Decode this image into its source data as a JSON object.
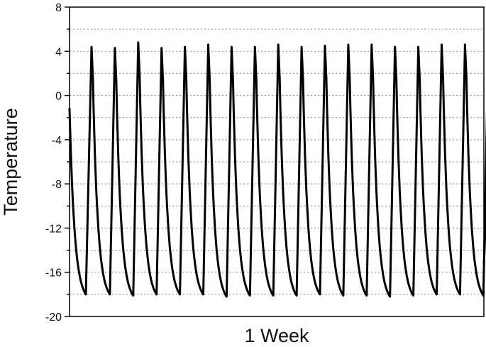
{
  "chart_data": {
    "type": "line",
    "xlabel": "1 Week",
    "ylabel": "Temperature",
    "ylim": [
      -20,
      8
    ],
    "yticks": [
      -20,
      -16,
      -12,
      -8,
      -4,
      0,
      4,
      8
    ],
    "ytick_labels": [
      "-20",
      "-16",
      "-12",
      "-8",
      "-4",
      "0",
      "4",
      "8"
    ],
    "xticks": [],
    "grid": {
      "horizontal": true,
      "vertical": false,
      "style": "dotted",
      "y_values": [
        -18,
        -16,
        -14,
        -12,
        -10,
        -8,
        -6,
        -4,
        -2,
        0,
        2,
        4,
        6
      ]
    },
    "legend": "none",
    "series": [
      {
        "color": "#000000",
        "start_value": -1.2,
        "end_value": -15.2,
        "cycles": [
          {
            "peak": 4.4,
            "trough": -18.0
          },
          {
            "peak": 4.3,
            "trough": -18.1
          },
          {
            "peak": 4.8,
            "trough": -18.0
          },
          {
            "peak": 4.3,
            "trough": -18.0
          },
          {
            "peak": 4.4,
            "trough": -18.0
          },
          {
            "peak": 4.6,
            "trough": -18.2
          },
          {
            "peak": 4.4,
            "trough": -18.1
          },
          {
            "peak": 4.4,
            "trough": -18.1
          },
          {
            "peak": 4.6,
            "trough": -18.1
          },
          {
            "peak": 4.4,
            "trough": -18.0
          },
          {
            "peak": 4.5,
            "trough": -18.1
          },
          {
            "peak": 4.6,
            "trough": -18.1
          },
          {
            "peak": 4.6,
            "trough": -18.2
          },
          {
            "peak": 4.4,
            "trough": -18.1
          },
          {
            "peak": 4.4,
            "trough": -18.0
          },
          {
            "peak": 4.6,
            "trough": -18.0
          },
          {
            "peak": 4.6,
            "trough": -18.1
          },
          {
            "peak": 4.5,
            "trough": null
          }
        ]
      }
    ]
  }
}
